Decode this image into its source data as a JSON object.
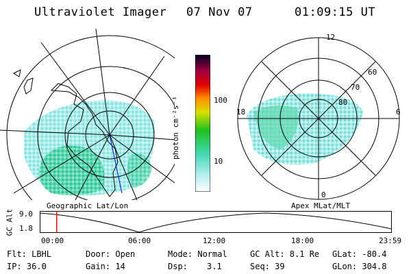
{
  "header": {
    "instrument": "Ultraviolet Imager",
    "date": "07 Nov 07",
    "time": "01:09:15 UT"
  },
  "colorbar": {
    "unit_label": "photon cm⁻²s⁻¹",
    "ticks": [
      "100",
      "10"
    ]
  },
  "left_panel": {
    "label": "Geographic Lat/Lon"
  },
  "right_panel": {
    "label": "Apex MLat/MLT",
    "mlt_labels": [
      "12",
      "18",
      "6",
      "0"
    ],
    "lat_labels": [
      "60",
      "70",
      "80"
    ]
  },
  "timeline": {
    "ylabel": "GC Alt",
    "y_ticks": [
      "9.0",
      "1.8"
    ],
    "x_ticks": [
      "00:00",
      "06:00",
      "12:00",
      "18:00",
      "23:59"
    ],
    "current_time_hours": 1.154
  },
  "footer": {
    "filter": "Flt: LBHL",
    "ip": "IP: 36.0",
    "door": "Door: Open",
    "gain": "Gain: 14",
    "mode": "Mode: Normal",
    "dsp_label": "Dsp:",
    "dsp_value": "3.1",
    "gc_alt": "GC Alt: 8.1 Re",
    "seq": "Seq: 39",
    "glat": "GLat: -80.4",
    "glon": "GLon: 304.8"
  },
  "colors": {
    "background": "#ffffff",
    "marker": "#ff0000",
    "track": "#0000ff"
  }
}
